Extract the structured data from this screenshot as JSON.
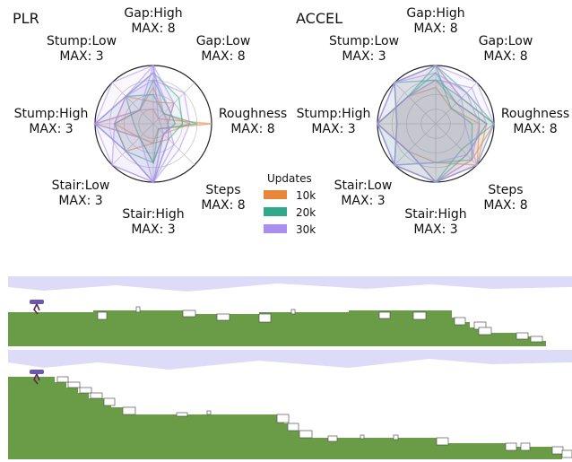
{
  "radars": [
    {
      "title": "PLR",
      "axes": [
        {
          "name": "Gap:High",
          "max": "MAX: 8"
        },
        {
          "name": "Gap:Low",
          "max": "MAX: 8"
        },
        {
          "name": "Roughness",
          "max": "MAX: 8"
        },
        {
          "name": "Steps",
          "max": "MAX: 8"
        },
        {
          "name": "Stair:High",
          "max": "MAX: 3"
        },
        {
          "name": "Stair:Low",
          "max": "MAX: 3"
        },
        {
          "name": "Stump:High",
          "max": "MAX: 3"
        },
        {
          "name": "Stump:Low",
          "max": "MAX: 3"
        }
      ]
    },
    {
      "title": "ACCEL",
      "axes": [
        {
          "name": "Gap:High",
          "max": "MAX: 8"
        },
        {
          "name": "Gap:Low",
          "max": "MAX: 8"
        },
        {
          "name": "Roughness",
          "max": "MAX: 8"
        },
        {
          "name": "Steps",
          "max": "MAX: 8"
        },
        {
          "name": "Stair:High",
          "max": "MAX: 3"
        },
        {
          "name": "Stair:Low",
          "max": "MAX: 3"
        },
        {
          "name": "Stump:High",
          "max": "MAX: 3"
        },
        {
          "name": "Stump:Low",
          "max": "MAX: 3"
        }
      ]
    }
  ],
  "legend": {
    "title": "Updates",
    "entries": [
      {
        "label": "10k",
        "color": "#e8873a"
      },
      {
        "label": "20k",
        "color": "#2fa98c"
      },
      {
        "label": "30k",
        "color": "#a98ef0"
      }
    ]
  },
  "chart_data": [
    {
      "type": "radar",
      "title": "PLR",
      "axes": [
        "Gap:High",
        "Gap:Low",
        "Roughness",
        "Steps",
        "Stair:High",
        "Stair:Low",
        "Stump:High",
        "Stump:Low"
      ],
      "max": [
        8,
        8,
        8,
        8,
        3,
        3,
        3,
        3
      ],
      "series": [
        {
          "name": "10k",
          "values": [
            2,
            1,
            8,
            1,
            1,
            1,
            3,
            1
          ]
        },
        {
          "name": "10k",
          "values": [
            5,
            2,
            5,
            2,
            2,
            1,
            2,
            1
          ]
        },
        {
          "name": "10k",
          "values": [
            3,
            4,
            2,
            3,
            1,
            2,
            2,
            2
          ]
        },
        {
          "name": "20k",
          "values": [
            6,
            3,
            3,
            2,
            2,
            2,
            2,
            1
          ]
        },
        {
          "name": "20k",
          "values": [
            7,
            5,
            4,
            3,
            3,
            2,
            3,
            2
          ]
        },
        {
          "name": "20k",
          "values": [
            4,
            2,
            6,
            1,
            2,
            1,
            1,
            2
          ]
        },
        {
          "name": "30k",
          "values": [
            8,
            2,
            2,
            3,
            3,
            2,
            3,
            2
          ]
        },
        {
          "name": "30k",
          "values": [
            7,
            3,
            3,
            2,
            3,
            3,
            2,
            2
          ]
        },
        {
          "name": "30k",
          "values": [
            8,
            4,
            2,
            4,
            3,
            2,
            3,
            3
          ]
        },
        {
          "name": "30k",
          "values": [
            6,
            6,
            5,
            5,
            3,
            3,
            3,
            2
          ]
        },
        {
          "name": "30k",
          "values": [
            8,
            1,
            1,
            2,
            3,
            1,
            3,
            1
          ]
        }
      ]
    },
    {
      "type": "radar",
      "title": "ACCEL",
      "axes": [
        "Gap:High",
        "Gap:Low",
        "Roughness",
        "Steps",
        "Stair:High",
        "Stair:Low",
        "Stump:High",
        "Stump:Low"
      ],
      "max": [
        8,
        8,
        8,
        8,
        3,
        3,
        3,
        3
      ],
      "series": [
        {
          "name": "10k",
          "values": [
            6,
            4,
            7,
            8,
            3,
            2,
            3,
            2
          ]
        },
        {
          "name": "10k",
          "values": [
            8,
            5,
            8,
            7,
            3,
            3,
            2,
            3
          ]
        },
        {
          "name": "10k",
          "values": [
            5,
            3,
            6,
            8,
            2,
            2,
            3,
            2
          ]
        },
        {
          "name": "20k",
          "values": [
            8,
            6,
            8,
            8,
            3,
            3,
            3,
            3
          ]
        },
        {
          "name": "20k",
          "values": [
            7,
            4,
            7,
            6,
            3,
            2,
            3,
            2
          ]
        },
        {
          "name": "20k",
          "values": [
            6,
            5,
            8,
            5,
            3,
            3,
            2,
            3
          ]
        },
        {
          "name": "20k",
          "values": [
            8,
            3,
            5,
            7,
            2,
            3,
            3,
            2
          ]
        },
        {
          "name": "30k",
          "values": [
            8,
            8,
            8,
            8,
            3,
            3,
            3,
            3
          ]
        },
        {
          "name": "30k",
          "values": [
            7,
            6,
            6,
            7,
            3,
            2,
            3,
            3
          ]
        },
        {
          "name": "30k",
          "values": [
            6,
            7,
            7,
            6,
            2,
            3,
            3,
            2
          ]
        },
        {
          "name": "30k",
          "values": [
            8,
            5,
            4,
            8,
            3,
            3,
            2,
            3
          ]
        }
      ]
    }
  ],
  "terrains": {
    "colors": {
      "sky": "#dddcf8",
      "ground": "#6a9c48",
      "ground_edge": "#4a8a2e",
      "block": "#ffffff",
      "agent": "#6a58b0"
    }
  }
}
